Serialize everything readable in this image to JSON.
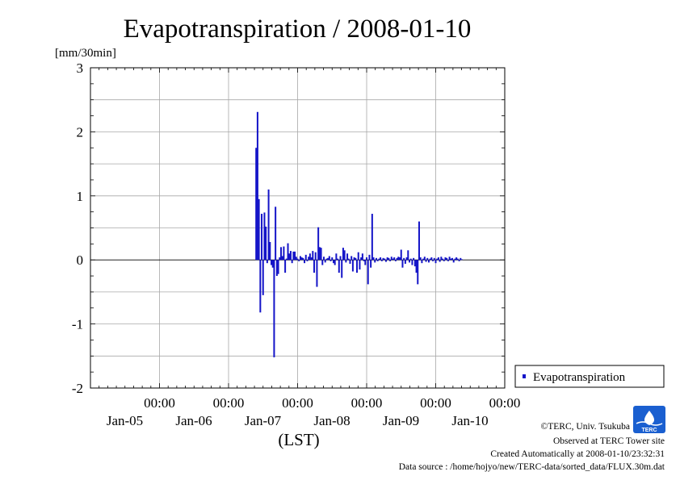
{
  "chart_data": {
    "type": "bar",
    "title": "Evapotranspiration / 2008-01-10",
    "ylabel": "[mm/30min]",
    "xlabel": "(LST)",
    "ylim": [
      -2,
      3
    ],
    "xlim": [
      0,
      6
    ],
    "grid": true,
    "legend_position": "right",
    "y_ticks": [
      "3",
      "2",
      "1",
      "0",
      "-1",
      "-2"
    ],
    "x_ticks": [
      {
        "x": 1,
        "time": "00:00",
        "date": "Jan-05"
      },
      {
        "x": 2,
        "time": "00:00",
        "date": "Jan-06"
      },
      {
        "x": 3,
        "time": "00:00",
        "date": "Jan-07"
      },
      {
        "x": 4,
        "time": "00:00",
        "date": "Jan-08"
      },
      {
        "x": 5,
        "time": "00:00",
        "date": "Jan-09"
      },
      {
        "x": 6,
        "time": "00:00",
        "date": "Jan-10"
      }
    ],
    "series": [
      {
        "name": "Evapotranspiration",
        "color": "#1414c8",
        "points": [
          [
            2.4,
            1.75
          ],
          [
            2.42,
            2.31
          ],
          [
            2.44,
            0.95
          ],
          [
            2.46,
            -0.82
          ],
          [
            2.48,
            0.72
          ],
          [
            2.5,
            -0.55
          ],
          [
            2.52,
            0.74
          ],
          [
            2.54,
            0.52
          ],
          [
            2.56,
            -0.05
          ],
          [
            2.58,
            1.1
          ],
          [
            2.6,
            0.28
          ],
          [
            2.62,
            -0.08
          ],
          [
            2.64,
            -0.12
          ],
          [
            2.66,
            -1.52
          ],
          [
            2.68,
            0.83
          ],
          [
            2.7,
            -0.25
          ],
          [
            2.72,
            -0.22
          ],
          [
            2.74,
            0.04
          ],
          [
            2.76,
            0.2
          ],
          [
            2.78,
            0.06
          ],
          [
            2.8,
            0.21
          ],
          [
            2.82,
            -0.2
          ],
          [
            2.84,
            0.02
          ],
          [
            2.86,
            0.26
          ],
          [
            2.88,
            0.1
          ],
          [
            2.9,
            0.14
          ],
          [
            2.92,
            -0.05
          ],
          [
            2.94,
            0.13
          ],
          [
            2.96,
            0.13
          ],
          [
            2.98,
            0.05
          ],
          [
            3.0,
            0.02
          ],
          [
            3.02,
            -0.02
          ],
          [
            3.04,
            0.06
          ],
          [
            3.06,
            0.04
          ],
          [
            3.08,
            0.03
          ],
          [
            3.1,
            -0.05
          ],
          [
            3.12,
            0.08
          ],
          [
            3.14,
            -0.02
          ],
          [
            3.16,
            0.05
          ],
          [
            3.18,
            0.1
          ],
          [
            3.2,
            0.04
          ],
          [
            3.22,
            0.14
          ],
          [
            3.24,
            -0.2
          ],
          [
            3.26,
            0.12
          ],
          [
            3.28,
            -0.42
          ],
          [
            3.3,
            0.51
          ],
          [
            3.32,
            0.2
          ],
          [
            3.34,
            0.19
          ],
          [
            3.36,
            -0.08
          ],
          [
            3.38,
            0.05
          ],
          [
            3.4,
            -0.04
          ],
          [
            3.42,
            0.02
          ],
          [
            3.44,
            0.03
          ],
          [
            3.46,
            0.06
          ],
          [
            3.48,
            -0.02
          ],
          [
            3.5,
            0.04
          ],
          [
            3.52,
            -0.05
          ],
          [
            3.54,
            -0.08
          ],
          [
            3.56,
            0.1
          ],
          [
            3.58,
            0.02
          ],
          [
            3.6,
            -0.2
          ],
          [
            3.62,
            0.06
          ],
          [
            3.64,
            -0.28
          ],
          [
            3.66,
            0.19
          ],
          [
            3.68,
            0.15
          ],
          [
            3.7,
            -0.04
          ],
          [
            3.72,
            0.1
          ],
          [
            3.74,
            0.02
          ],
          [
            3.76,
            -0.06
          ],
          [
            3.78,
            0.06
          ],
          [
            3.8,
            -0.18
          ],
          [
            3.82,
            0.04
          ],
          [
            3.84,
            0.03
          ],
          [
            3.86,
            -0.2
          ],
          [
            3.88,
            0.12
          ],
          [
            3.9,
            -0.15
          ],
          [
            3.92,
            0.04
          ],
          [
            3.94,
            0.1
          ],
          [
            3.96,
            -0.02
          ],
          [
            3.98,
            -0.08
          ],
          [
            4.0,
            0.04
          ],
          [
            4.02,
            -0.38
          ],
          [
            4.04,
            0.08
          ],
          [
            4.06,
            -0.12
          ],
          [
            4.08,
            0.72
          ],
          [
            4.1,
            0.04
          ],
          [
            4.12,
            -0.04
          ],
          [
            4.14,
            0.03
          ],
          [
            4.16,
            -0.02
          ],
          [
            4.18,
            0.02
          ],
          [
            4.2,
            0.04
          ],
          [
            4.22,
            -0.02
          ],
          [
            4.24,
            0.03
          ],
          [
            4.26,
            0.02
          ],
          [
            4.28,
            -0.03
          ],
          [
            4.3,
            0.04
          ],
          [
            4.32,
            0.03
          ],
          [
            4.34,
            -0.02
          ],
          [
            4.36,
            0.05
          ],
          [
            4.38,
            0.02
          ],
          [
            4.4,
            0.04
          ],
          [
            4.42,
            -0.02
          ],
          [
            4.44,
            0.03
          ],
          [
            4.46,
            0.05
          ],
          [
            4.48,
            0.04
          ],
          [
            4.5,
            0.16
          ],
          [
            4.52,
            -0.12
          ],
          [
            4.54,
            0.03
          ],
          [
            4.56,
            -0.06
          ],
          [
            4.58,
            0.04
          ],
          [
            4.6,
            0.15
          ],
          [
            4.62,
            -0.04
          ],
          [
            4.64,
            0.02
          ],
          [
            4.66,
            -0.08
          ],
          [
            4.68,
            0.03
          ],
          [
            4.7,
            -0.1
          ],
          [
            4.72,
            -0.2
          ],
          [
            4.74,
            -0.38
          ],
          [
            4.76,
            0.6
          ],
          [
            4.78,
            0.04
          ],
          [
            4.8,
            -0.05
          ],
          [
            4.82,
            0.02
          ],
          [
            4.84,
            0.05
          ],
          [
            4.86,
            -0.03
          ],
          [
            4.88,
            0.03
          ],
          [
            4.9,
            -0.04
          ],
          [
            4.92,
            0.02
          ],
          [
            4.94,
            0.04
          ],
          [
            4.96,
            -0.02
          ],
          [
            4.98,
            0.03
          ],
          [
            5.0,
            -0.05
          ],
          [
            5.02,
            0.02
          ],
          [
            5.04,
            0.04
          ],
          [
            5.06,
            -0.03
          ],
          [
            5.08,
            0.05
          ],
          [
            5.1,
            0.02
          ],
          [
            5.12,
            -0.02
          ],
          [
            5.14,
            0.04
          ],
          [
            5.16,
            0.03
          ],
          [
            5.18,
            -0.02
          ],
          [
            5.2,
            0.05
          ],
          [
            5.22,
            0.02
          ],
          [
            5.24,
            0.03
          ],
          [
            5.26,
            -0.04
          ],
          [
            5.28,
            0.02
          ],
          [
            5.3,
            0.04
          ],
          [
            5.32,
            0.02
          ],
          [
            5.34,
            -0.02
          ],
          [
            5.36,
            0.03
          ],
          [
            5.38,
            0.01
          ]
        ]
      }
    ]
  },
  "footer": {
    "copyright": "©TERC, Univ. Tsukuba",
    "observed": "Observed at TERC Tower site",
    "created": "Created Automatically at 2008-01-10/23:32:31",
    "source": "Data source : /home/hojyo/new/TERC-data/sorted_data/FLUX.30m.dat"
  },
  "logo": {
    "text": "TERC",
    "color": "#1a5fd0"
  }
}
